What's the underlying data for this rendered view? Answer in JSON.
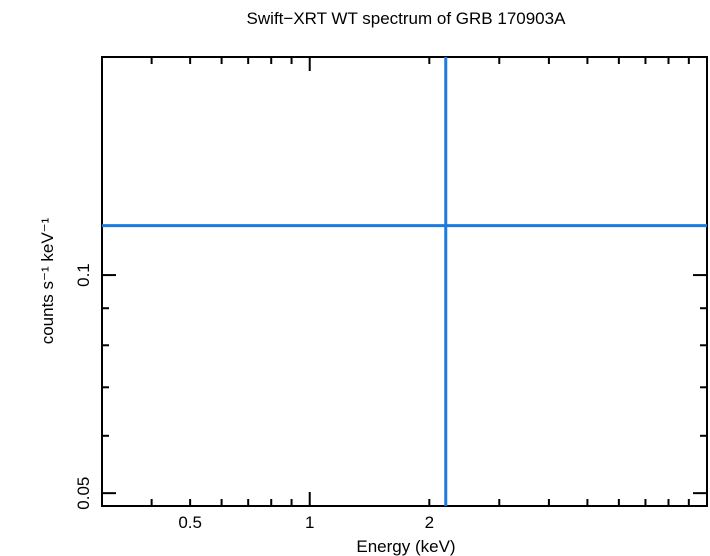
{
  "chart_data": {
    "type": "scatter",
    "title": "Swift−XRT WT spectrum of GRB 170903A",
    "xlabel": "Energy (keV)",
    "ylabel": "counts s⁻¹ keV⁻¹",
    "x_scale": "log",
    "y_scale": "log",
    "xlim": [
      0.3,
      10
    ],
    "ylim": [
      0.048,
      0.2
    ],
    "x_ticks_labeled": [
      {
        "value": 0.5,
        "label": "0.5"
      },
      {
        "value": 1,
        "label": "1"
      },
      {
        "value": 2,
        "label": "2"
      }
    ],
    "y_ticks_labeled": [
      {
        "value": 0.05,
        "label": "0.05"
      },
      {
        "value": 0.1,
        "label": "0.1"
      }
    ],
    "grid": false,
    "series": [
      {
        "color": "#1a7be0",
        "points": [
          {
            "x": 2.2,
            "x_low": 0.3,
            "x_high": 10,
            "y": 0.117,
            "y_low": 0.048,
            "y_high": 0.2
          }
        ]
      }
    ]
  }
}
